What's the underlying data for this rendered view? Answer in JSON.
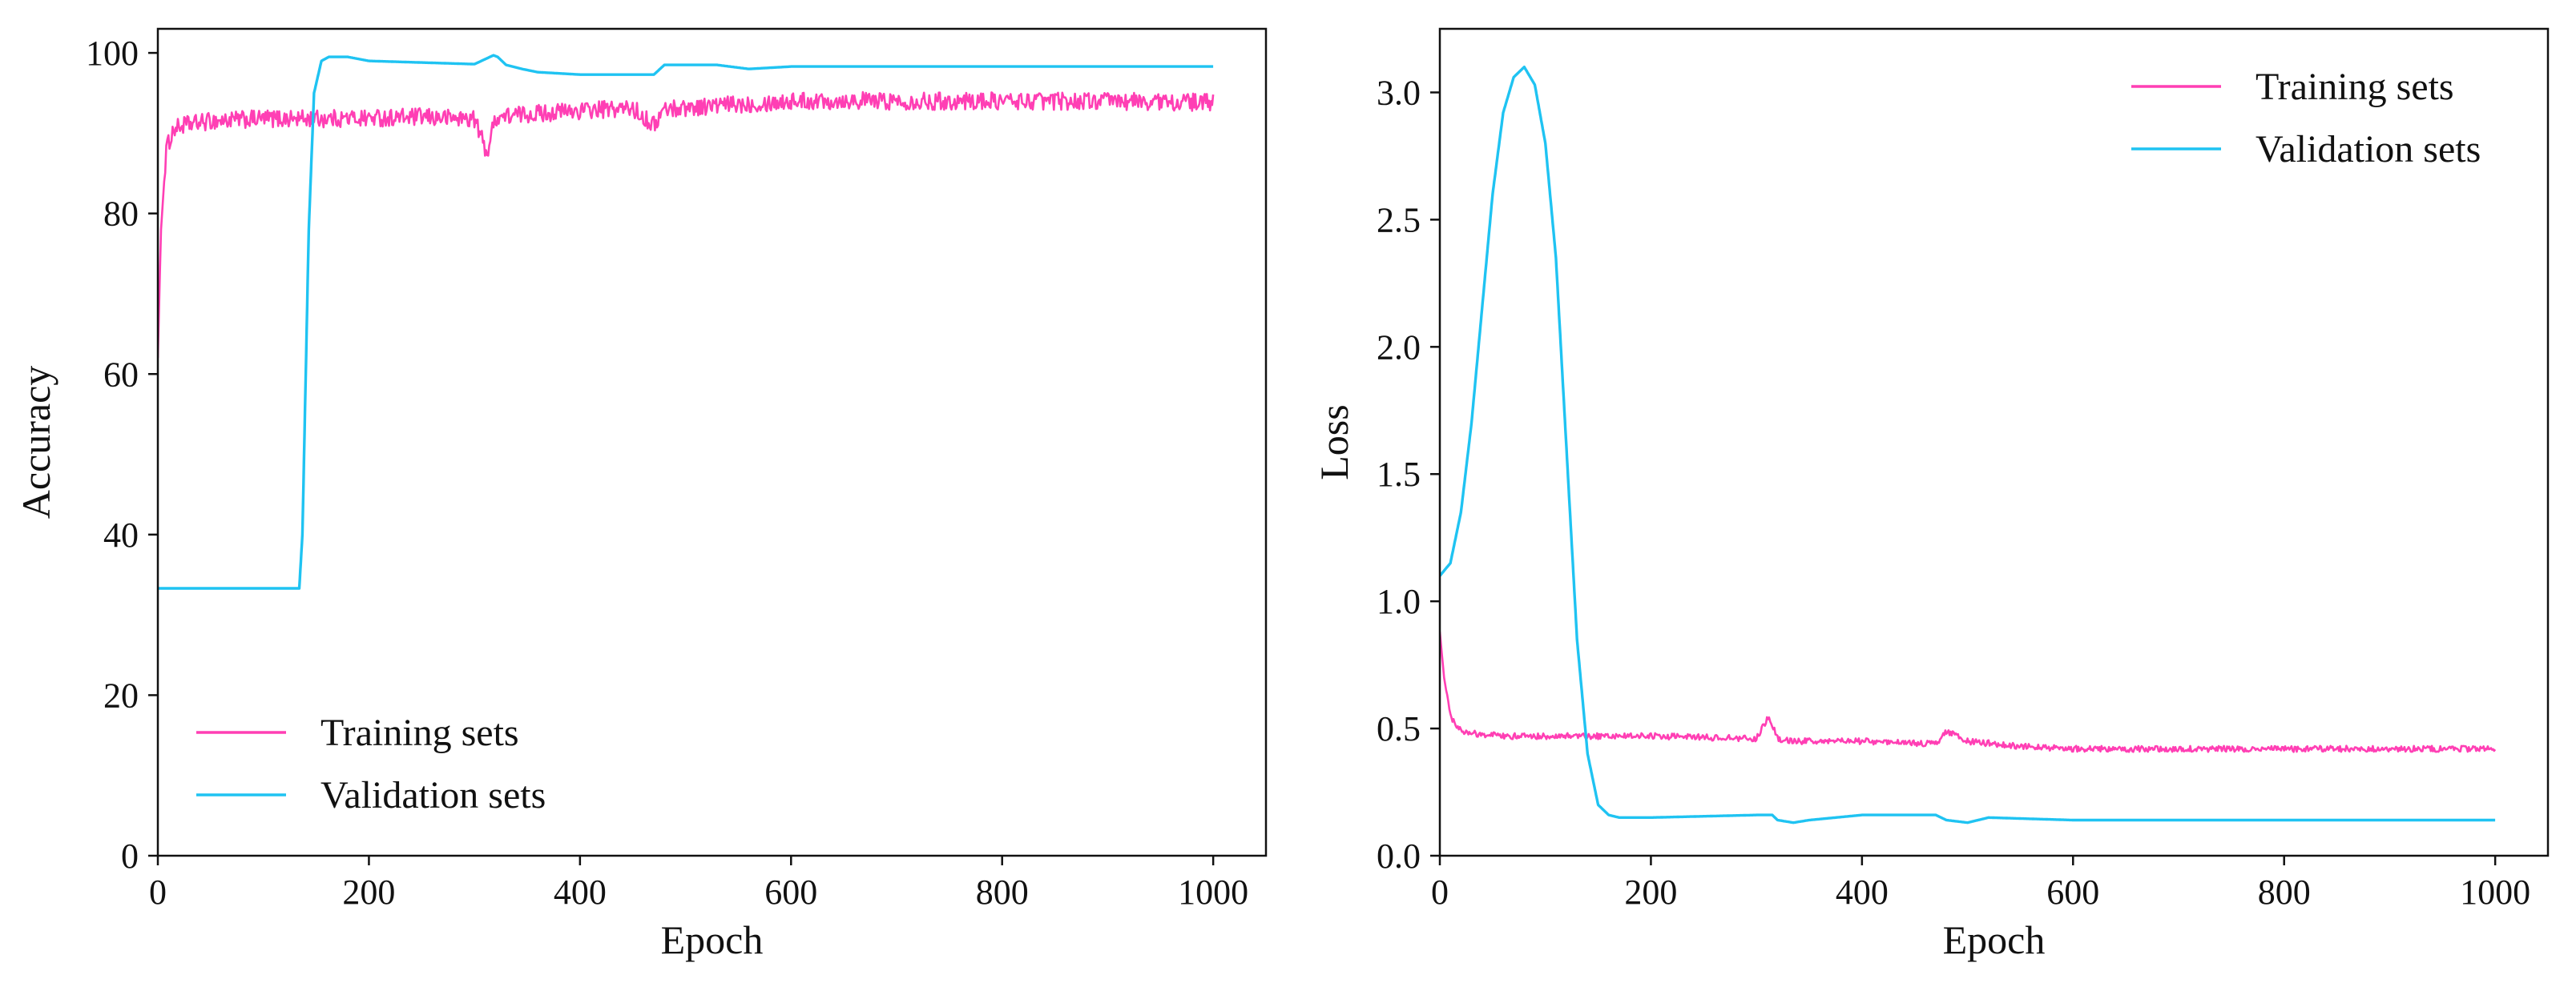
{
  "colors": {
    "training": "#ff3fb4",
    "validation": "#1fc3f2",
    "axis": "#111111"
  },
  "chart_data": [
    {
      "type": "line",
      "xlabel": "Epoch",
      "ylabel": "Accuracy",
      "xlim": [
        0,
        1050
      ],
      "ylim": [
        0,
        103
      ],
      "xticks": [
        0,
        200,
        400,
        600,
        800,
        1000
      ],
      "yticks": [
        0,
        20,
        40,
        60,
        80,
        100
      ],
      "grid": false,
      "legend": "lower-left",
      "series": [
        {
          "name": "Training sets",
          "color_key": "training",
          "noise": 1.1,
          "x": [
            0,
            3,
            8,
            15,
            25,
            50,
            100,
            150,
            200,
            250,
            300,
            312,
            320,
            350,
            400,
            450,
            470,
            480,
            500,
            550,
            600,
            650,
            700,
            800,
            900,
            1000
          ],
          "y": [
            62,
            78,
            88,
            90.5,
            91,
            91.5,
            91.8,
            91.8,
            91.9,
            92,
            91.8,
            87.5,
            92,
            92.4,
            92.8,
            93.1,
            91,
            93,
            93.2,
            93.6,
            94,
            94.1,
            94,
            94,
            94,
            93.8
          ]
        },
        {
          "name": "Validation sets",
          "color_key": "validation",
          "noise": 0,
          "x": [
            0,
            134,
            137,
            143,
            148,
            155,
            162,
            180,
            200,
            300,
            318,
            322,
            330,
            345,
            360,
            400,
            470,
            480,
            530,
            560,
            600,
            700,
            800,
            900,
            1000
          ],
          "y": [
            33.3,
            33.3,
            40,
            78,
            95,
            99,
            99.5,
            99.5,
            99,
            98.6,
            99.7,
            99.5,
            98.5,
            98,
            97.6,
            97.3,
            97.3,
            98.5,
            98.5,
            98,
            98.3,
            98.3,
            98.3,
            98.3,
            98.3
          ]
        }
      ]
    },
    {
      "type": "line",
      "xlabel": "Epoch",
      "ylabel": "Loss",
      "xlim": [
        0,
        1050
      ],
      "ylim": [
        0,
        3.25
      ],
      "xticks": [
        0,
        200,
        400,
        600,
        800,
        1000
      ],
      "yticks": [
        0.0,
        0.5,
        1.0,
        1.5,
        2.0,
        2.5,
        3.0
      ],
      "grid": false,
      "legend": "upper-right",
      "series": [
        {
          "name": "Training sets",
          "color_key": "training",
          "noise": 0.012,
          "x": [
            0,
            4,
            10,
            20,
            35,
            60,
            100,
            200,
            300,
            312,
            320,
            340,
            400,
            470,
            480,
            500,
            550,
            600,
            700,
            800,
            900,
            1000
          ],
          "y": [
            0.88,
            0.7,
            0.55,
            0.49,
            0.48,
            0.47,
            0.47,
            0.47,
            0.46,
            0.55,
            0.46,
            0.45,
            0.45,
            0.44,
            0.49,
            0.45,
            0.43,
            0.42,
            0.42,
            0.42,
            0.42,
            0.42
          ]
        },
        {
          "name": "Validation sets",
          "color_key": "validation",
          "noise": 0,
          "x": [
            0,
            10,
            20,
            30,
            40,
            50,
            60,
            70,
            80,
            90,
            100,
            110,
            120,
            130,
            140,
            150,
            160,
            170,
            180,
            200,
            250,
            300,
            315,
            320,
            335,
            350,
            400,
            470,
            480,
            500,
            520,
            600,
            700,
            800,
            900,
            1000
          ],
          "y": [
            1.1,
            1.15,
            1.35,
            1.7,
            2.15,
            2.6,
            2.92,
            3.06,
            3.1,
            3.03,
            2.8,
            2.35,
            1.6,
            0.85,
            0.4,
            0.2,
            0.16,
            0.15,
            0.15,
            0.15,
            0.155,
            0.16,
            0.16,
            0.14,
            0.13,
            0.14,
            0.16,
            0.16,
            0.14,
            0.13,
            0.15,
            0.14,
            0.14,
            0.14,
            0.14,
            0.14
          ]
        }
      ]
    }
  ]
}
